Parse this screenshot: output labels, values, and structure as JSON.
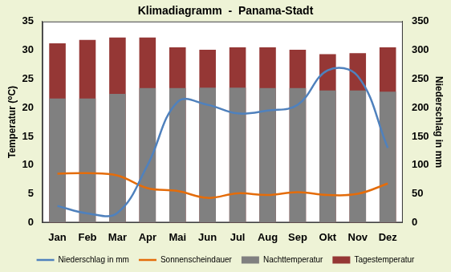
{
  "chart_data": {
    "type": "bar",
    "title": "Klimadiagramm  -  Panama-Stadt",
    "y_label": "Temperatur (⁰C)",
    "y2_label": "Niederschlag in mm",
    "categories": [
      "Jan",
      "Feb",
      "Mar",
      "Apr",
      "Mai",
      "Jun",
      "Jul",
      "Aug",
      "Sep",
      "Okt",
      "Nov",
      "Dez"
    ],
    "series": [
      {
        "name": "Tagestemperatur",
        "type": "bar",
        "color": "#953735",
        "values": [
          31.2,
          31.8,
          32.2,
          32.2,
          30.5,
          30.1,
          30.5,
          30.5,
          30.1,
          29.3,
          29.5,
          30.5
        ]
      },
      {
        "name": "Nachttemperatur",
        "type": "bar",
        "color": "#808080",
        "values": [
          21.6,
          21.6,
          22.4,
          23.4,
          23.4,
          23.5,
          23.5,
          23.4,
          23.4,
          23.0,
          23.0,
          22.8
        ]
      },
      {
        "name": "Niederschlag in mm",
        "type": "line",
        "axis": "y2",
        "color": "#4f81bd",
        "marker": "none",
        "values": [
          29,
          16,
          17,
          100,
          210,
          205,
          190,
          195,
          205,
          265,
          255,
          130
        ]
      },
      {
        "name": "Sonnenscheindauer",
        "type": "line",
        "color": "#e46c0a",
        "marker": "none",
        "values": [
          8.5,
          8.6,
          8.2,
          6.0,
          5.5,
          4.3,
          5.1,
          4.8,
          5.3,
          4.8,
          5.0,
          6.8
        ]
      }
    ],
    "ylim": [
      0,
      35
    ],
    "yticks": [
      0,
      5,
      10,
      15,
      20,
      25,
      30,
      35
    ],
    "y2lim": [
      0,
      350
    ],
    "y2ticks": [
      0,
      50,
      100,
      150,
      200,
      250,
      300,
      350
    ],
    "grid": false,
    "legend": "bottom"
  }
}
